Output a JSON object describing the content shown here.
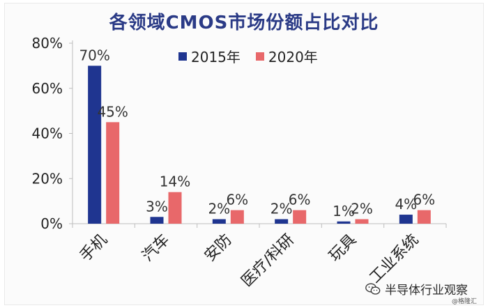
{
  "chart_data": {
    "type": "bar",
    "title": "各领域CMOS市场份额占比对比",
    "categories": [
      "手机",
      "汽车",
      "安防",
      "医疗/科研",
      "玩具",
      "工业系统"
    ],
    "series": [
      {
        "name": "2015年",
        "values": [
          70,
          3,
          2,
          2,
          1,
          4
        ],
        "labels": [
          "70%",
          "3%",
          "2%",
          "2%",
          "1%",
          "4%"
        ],
        "color": "#1f3590"
      },
      {
        "name": "2020年",
        "values": [
          45,
          14,
          6,
          6,
          2,
          6
        ],
        "labels": [
          "45%",
          "14%",
          "6%",
          "6%",
          "2%",
          "6%"
        ],
        "color": "#e8686a"
      }
    ],
    "yticks": [
      "0%",
      "20%",
      "40%",
      "60%",
      "80%"
    ],
    "ylim": [
      0,
      80
    ],
    "grid": false,
    "legend_position": "top"
  },
  "watermark": {
    "text": "半导体行业观察",
    "credit": "@格隆汇"
  }
}
